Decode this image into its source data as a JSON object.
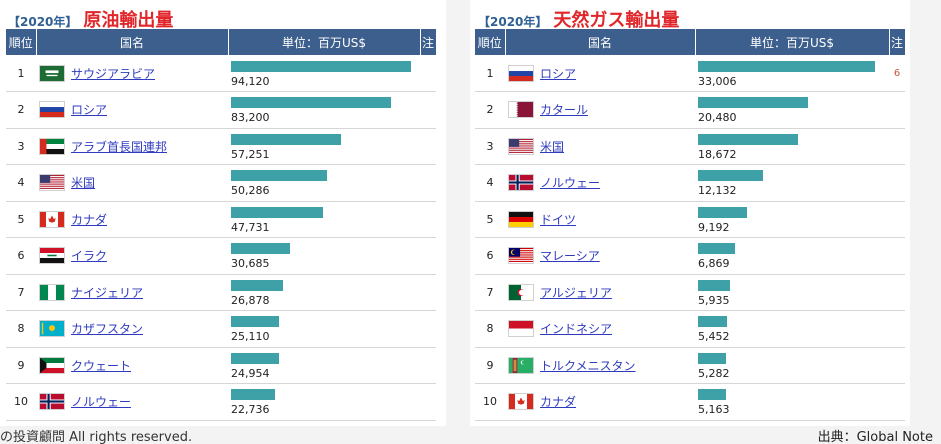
{
  "footer": {
    "copyright": "の投資顧問 All rights reserved.",
    "source": "出典：Global Note"
  },
  "headers": {
    "rank": "順位",
    "country": "国名",
    "unit": "単位：百万US$",
    "note": "注"
  },
  "colors": {
    "header_bg": "#3c5f8d",
    "bar": "#3ea1a8",
    "title": "#e0262a",
    "year_tag": "#2f5f93",
    "link": "#2f3bbf"
  },
  "chart_data": [
    {
      "type": "bar",
      "year_label": "【2020年】",
      "title": "原油輸出量",
      "categories": [
        "サウジアラビア",
        "ロシア",
        "アラブ首長国連邦",
        "米国",
        "カナダ",
        "イラク",
        "ナイジェリア",
        "カザフスタン",
        "クウェート",
        "ノルウェー"
      ],
      "values": [
        94120,
        83200,
        57251,
        50286,
        47731,
        30685,
        26878,
        25110,
        24954,
        22736
      ],
      "value_labels": [
        "94,120",
        "83,200",
        "57,251",
        "50,286",
        "47,731",
        "30,685",
        "26,878",
        "25,110",
        "24,954",
        "22,736"
      ],
      "notes": [
        "",
        "",
        "",
        "",
        "",
        "",
        "",
        "",
        "",
        ""
      ],
      "flags": [
        "saudi-arabia",
        "russia",
        "uae",
        "usa",
        "canada",
        "iraq",
        "nigeria",
        "kazakhstan",
        "kuwait",
        "norway"
      ],
      "xlim": [
        0,
        97000
      ]
    },
    {
      "type": "bar",
      "year_label": "【2020年】",
      "title": "天然ガス輸出量",
      "categories": [
        "ロシア",
        "カタール",
        "米国",
        "ノルウェー",
        "ドイツ",
        "マレーシア",
        "アルジェリア",
        "インドネシア",
        "トルクメニスタン",
        "カナダ"
      ],
      "values": [
        33006,
        20480,
        18672,
        12132,
        9192,
        6869,
        5935,
        5452,
        5282,
        5163
      ],
      "value_labels": [
        "33,006",
        "20,480",
        "18,672",
        "12,132",
        "9,192",
        "6,869",
        "5,935",
        "5,452",
        "5,282",
        "5,163"
      ],
      "notes": [
        "6",
        "",
        "",
        "",
        "",
        "",
        "",
        "",
        "",
        ""
      ],
      "flags": [
        "russia",
        "qatar",
        "usa",
        "norway",
        "germany",
        "malaysia",
        "algeria",
        "indonesia",
        "turkmenistan",
        "canada"
      ],
      "xlim": [
        0,
        35000
      ]
    }
  ]
}
